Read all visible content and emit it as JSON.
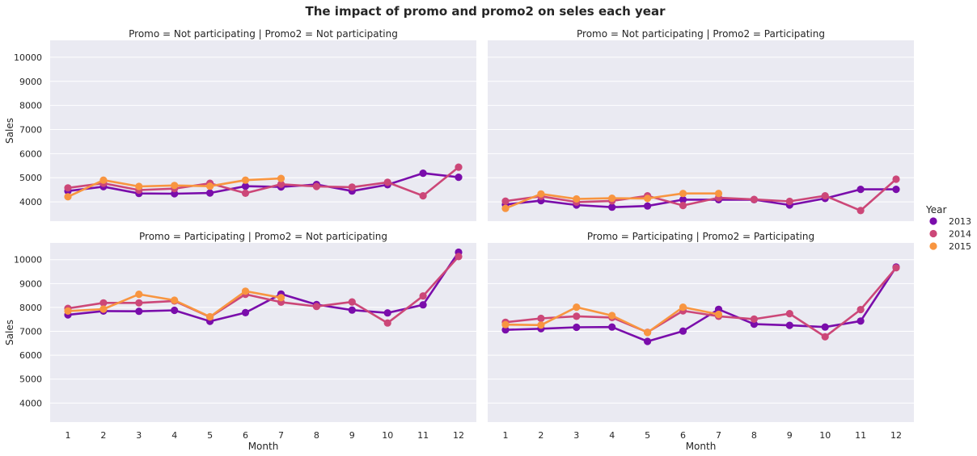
{
  "chart_data": {
    "type": "line",
    "title": "The impact of promo and promo2 on seles each year",
    "xlabel": "Month",
    "ylabel": "Sales",
    "categories": [
      "1",
      "2",
      "3",
      "4",
      "5",
      "6",
      "7",
      "8",
      "9",
      "10",
      "11",
      "12"
    ],
    "ylim": [
      3200,
      10700
    ],
    "yticks": [
      4000,
      5000,
      6000,
      7000,
      8000,
      9000,
      10000
    ],
    "grid": true,
    "legend": {
      "title": "Year",
      "placement": "right",
      "entries": [
        {
          "name": "2013",
          "color": "#7a0dab"
        },
        {
          "name": "2014",
          "color": "#cc4778"
        },
        {
          "name": "2015",
          "color": "#f89540"
        }
      ]
    },
    "panels": [
      {
        "title": "Promo = Not participating | Promo2 = Not participating",
        "series": [
          {
            "name": "2013",
            "color": "#7a0dab",
            "values": [
              4450,
              4630,
              4350,
              4340,
              4370,
              4650,
              4620,
              4720,
              4450,
              4710,
              5190,
              5020
            ]
          },
          {
            "name": "2014",
            "color": "#cc4778",
            "values": [
              4580,
              4770,
              4490,
              4550,
              4770,
              4360,
              4730,
              4640,
              4610,
              4810,
              4250,
              5440
            ]
          },
          {
            "name": "2015",
            "color": "#f89540",
            "values": [
              4210,
              4900,
              4640,
              4680,
              4650,
              4900,
              4970,
              null,
              null,
              null,
              null,
              null
            ]
          }
        ]
      },
      {
        "title": "Promo = Not participating | Promo2 = Participating",
        "series": [
          {
            "name": "2013",
            "color": "#7a0dab",
            "values": [
              3890,
              4050,
              3870,
              3780,
              3830,
              4090,
              4090,
              4090,
              3870,
              4140,
              4520,
              4520
            ]
          },
          {
            "name": "2014",
            "color": "#cc4778",
            "values": [
              4030,
              4230,
              3990,
              4040,
              4250,
              3850,
              4170,
              4100,
              4020,
              4250,
              3640,
              4940
            ]
          },
          {
            "name": "2015",
            "color": "#f89540",
            "values": [
              3730,
              4330,
              4120,
              4150,
              4140,
              4350,
              4350,
              null,
              null,
              null,
              null,
              null
            ]
          }
        ]
      },
      {
        "title": "Promo = Participating | Promo2 = Not participating",
        "series": [
          {
            "name": "2013",
            "color": "#7a0dab",
            "values": [
              7690,
              7850,
              7840,
              7880,
              7420,
              7780,
              8560,
              8120,
              7890,
              7770,
              8110,
              10310
            ]
          },
          {
            "name": "2014",
            "color": "#cc4778",
            "values": [
              7960,
              8190,
              8190,
              8270,
              7600,
              8550,
              8220,
              8040,
              8230,
              7350,
              8480,
              10130
            ]
          },
          {
            "name": "2015",
            "color": "#f89540",
            "values": [
              7850,
              7930,
              8550,
              8300,
              7610,
              8680,
              8410,
              null,
              null,
              null,
              null,
              null
            ]
          }
        ]
      },
      {
        "title": "Promo = Participating | Promo2 = Participating",
        "series": [
          {
            "name": "2013",
            "color": "#7a0dab",
            "values": [
              7060,
              7110,
              7170,
              7180,
              6580,
              7010,
              7920,
              7300,
              7250,
              7180,
              7430,
              9690
            ]
          },
          {
            "name": "2014",
            "color": "#cc4778",
            "values": [
              7380,
              7540,
              7630,
              7580,
              6960,
              7860,
              7630,
              7510,
              7740,
              6770,
              7910,
              9660
            ]
          },
          {
            "name": "2015",
            "color": "#f89540",
            "values": [
              7280,
              7260,
              8010,
              7660,
              6950,
              8010,
              7710,
              null,
              null,
              null,
              null,
              null
            ]
          }
        ]
      }
    ]
  }
}
